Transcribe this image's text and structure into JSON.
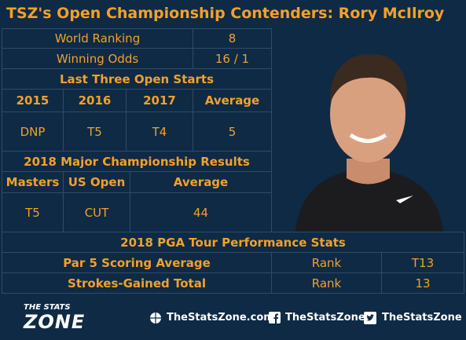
{
  "header": {
    "title": "TSZ's Open Championship Contenders: Rory McIlroy"
  },
  "profile": {
    "rows": [
      [
        "World Ranking",
        8
      ],
      [
        "Winning Odds",
        "16 / 1"
      ]
    ]
  },
  "open_starts": {
    "title": "Last Three Open Starts",
    "columns": [
      "2015",
      "2016",
      "2017",
      "Average"
    ],
    "values": [
      "DNP",
      "T5",
      "T4",
      5
    ]
  },
  "majors": {
    "title": "2018 Major Championship Results",
    "columns": [
      "Masters",
      "US Open",
      "Average"
    ],
    "values": [
      "T5",
      "CUT",
      44
    ]
  },
  "pga_stats": {
    "title": "2018 PGA Tour Performance Stats",
    "rows": [
      [
        "Par 5 Scoring Average",
        "Rank",
        "T13"
      ],
      [
        "Strokes-Gained Total",
        "Rank",
        13
      ]
    ]
  },
  "footer": {
    "logo_top": "THE STATS",
    "logo_bottom": "ZONE",
    "website": "TheStatsZone.com",
    "facebook": "TheStatsZone",
    "twitter": "TheStatsZone"
  }
}
